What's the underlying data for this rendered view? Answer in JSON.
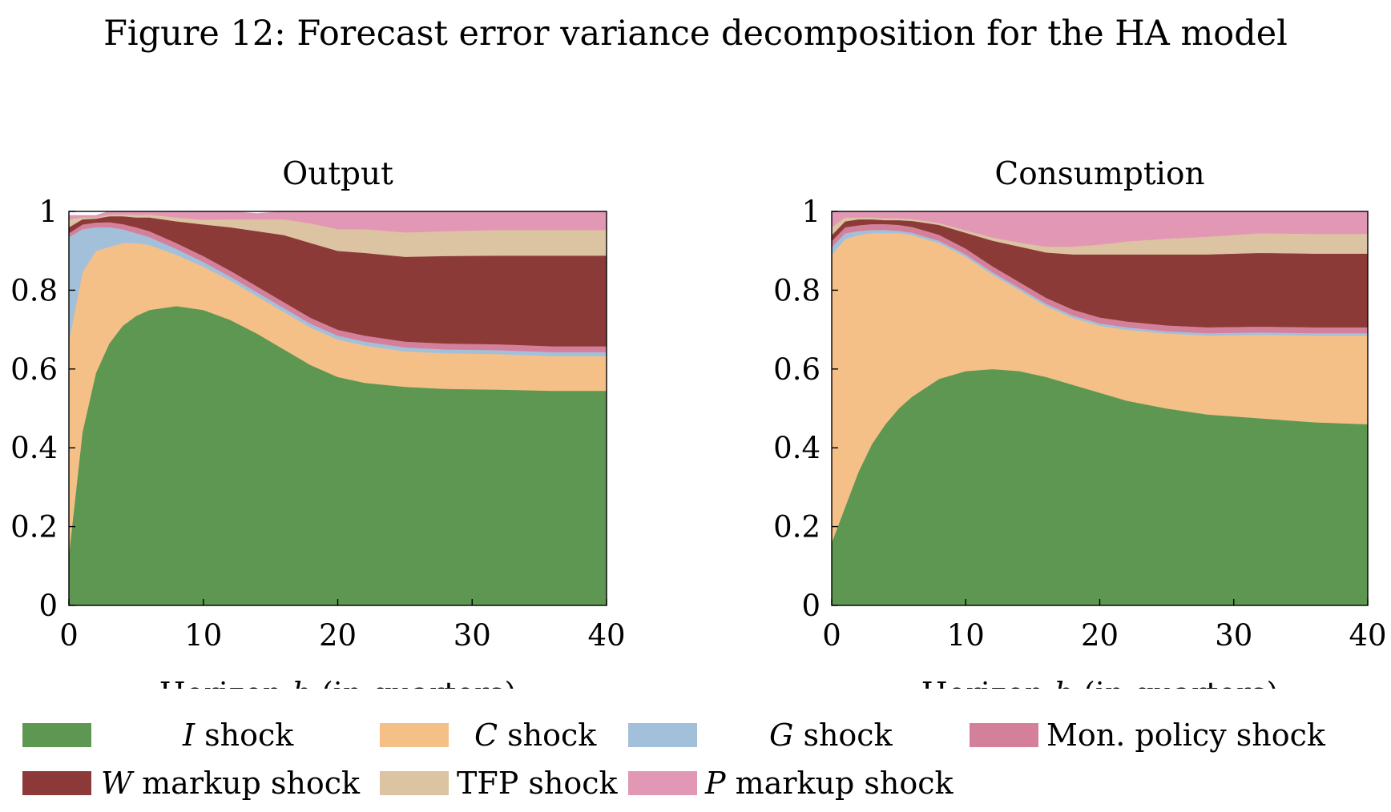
{
  "figure_title": "Figure 12: Forecast error variance decomposition for the HA model",
  "chart_data": [
    {
      "type": "area",
      "stacked": true,
      "title": "Output",
      "xlabel": "Horizon h (in quarters)",
      "ylabel": "",
      "xlim": [
        0,
        40
      ],
      "ylim": [
        0,
        1
      ],
      "xticks": [
        "0",
        "10",
        "20",
        "30",
        "40"
      ],
      "yticks": [
        "0",
        "0.2",
        "0.4",
        "0.6",
        "0.8",
        "1"
      ],
      "grid": false,
      "x": [
        0,
        1,
        2,
        3,
        4,
        5,
        6,
        8,
        10,
        12,
        14,
        16,
        18,
        20,
        22,
        25,
        28,
        32,
        36,
        40
      ],
      "series": [
        {
          "name": "I shock",
          "values": [
            0.13,
            0.44,
            0.59,
            0.665,
            0.71,
            0.735,
            0.75,
            0.76,
            0.75,
            0.725,
            0.69,
            0.65,
            0.61,
            0.58,
            0.565,
            0.555,
            0.55,
            0.548,
            0.545,
            0.545
          ]
        },
        {
          "name": "C shock",
          "values": [
            0.54,
            0.405,
            0.31,
            0.245,
            0.21,
            0.185,
            0.165,
            0.13,
            0.11,
            0.1,
            0.095,
            0.095,
            0.095,
            0.095,
            0.095,
            0.09,
            0.09,
            0.09,
            0.088,
            0.088
          ]
        },
        {
          "name": "G shock",
          "values": [
            0.265,
            0.11,
            0.06,
            0.05,
            0.035,
            0.025,
            0.02,
            0.015,
            0.012,
            0.01,
            0.01,
            0.01,
            0.01,
            0.01,
            0.01,
            0.01,
            0.01,
            0.01,
            0.01,
            0.01
          ]
        },
        {
          "name": "Mon. policy shock",
          "values": [
            0.01,
            0.012,
            0.012,
            0.013,
            0.013,
            0.015,
            0.015,
            0.015,
            0.015,
            0.015,
            0.015,
            0.015,
            0.015,
            0.015,
            0.015,
            0.015,
            0.015,
            0.015,
            0.015,
            0.015
          ]
        },
        {
          "name": "W markup shock",
          "values": [
            0.015,
            0.013,
            0.01,
            0.015,
            0.02,
            0.025,
            0.035,
            0.055,
            0.08,
            0.11,
            0.14,
            0.17,
            0.19,
            0.2,
            0.21,
            0.215,
            0.222,
            0.225,
            0.23,
            0.23
          ]
        },
        {
          "name": "TFP shock",
          "values": [
            0.02,
            0.005,
            0.003,
            0.004,
            0.005,
            0.006,
            0.007,
            0.01,
            0.012,
            0.02,
            0.03,
            0.04,
            0.05,
            0.055,
            0.06,
            0.062,
            0.063,
            0.065,
            0.065,
            0.065
          ]
        },
        {
          "name": "P markup shock",
          "values": [
            0.01,
            0.005,
            0.005,
            0.008,
            0.007,
            0.009,
            0.008,
            0.015,
            0.021,
            0.02,
            0.015,
            0.02,
            0.03,
            0.045,
            0.045,
            0.053,
            0.05,
            0.047,
            0.047,
            0.047
          ]
        }
      ]
    },
    {
      "type": "area",
      "stacked": true,
      "title": "Consumption",
      "xlabel": "Horizon h (in quarters)",
      "ylabel": "",
      "xlim": [
        0,
        40
      ],
      "ylim": [
        0,
        1
      ],
      "xticks": [
        "0",
        "10",
        "20",
        "30",
        "40"
      ],
      "yticks": [
        "0",
        "0.2",
        "0.4",
        "0.6",
        "0.8",
        "1"
      ],
      "grid": false,
      "x": [
        0,
        1,
        2,
        3,
        4,
        5,
        6,
        8,
        10,
        12,
        14,
        16,
        18,
        20,
        22,
        25,
        28,
        32,
        36,
        40
      ],
      "series": [
        {
          "name": "I shock",
          "values": [
            0.16,
            0.25,
            0.34,
            0.41,
            0.46,
            0.5,
            0.53,
            0.575,
            0.595,
            0.6,
            0.595,
            0.58,
            0.56,
            0.54,
            0.52,
            0.5,
            0.485,
            0.475,
            0.465,
            0.46
          ]
        },
        {
          "name": "C shock",
          "values": [
            0.73,
            0.68,
            0.6,
            0.535,
            0.485,
            0.445,
            0.41,
            0.345,
            0.29,
            0.24,
            0.205,
            0.18,
            0.17,
            0.17,
            0.18,
            0.19,
            0.2,
            0.212,
            0.22,
            0.225
          ]
        },
        {
          "name": "G shock",
          "values": [
            0.02,
            0.015,
            0.01,
            0.008,
            0.008,
            0.006,
            0.006,
            0.006,
            0.006,
            0.006,
            0.006,
            0.006,
            0.006,
            0.006,
            0.006,
            0.006,
            0.006,
            0.006,
            0.006,
            0.006
          ]
        },
        {
          "name": "Mon. policy shock",
          "values": [
            0.015,
            0.015,
            0.015,
            0.015,
            0.015,
            0.015,
            0.015,
            0.015,
            0.015,
            0.015,
            0.015,
            0.015,
            0.015,
            0.015,
            0.015,
            0.015,
            0.015,
            0.015,
            0.015,
            0.015
          ]
        },
        {
          "name": "W markup shock",
          "values": [
            0.015,
            0.015,
            0.015,
            0.012,
            0.01,
            0.012,
            0.015,
            0.025,
            0.04,
            0.065,
            0.09,
            0.115,
            0.14,
            0.16,
            0.17,
            0.18,
            0.185,
            0.187,
            0.187,
            0.187
          ]
        },
        {
          "name": "TFP shock",
          "values": [
            0.02,
            0.01,
            0.005,
            0.005,
            0.005,
            0.005,
            0.005,
            0.005,
            0.006,
            0.008,
            0.01,
            0.015,
            0.02,
            0.025,
            0.033,
            0.04,
            0.045,
            0.05,
            0.05,
            0.05
          ]
        },
        {
          "name": "P markup shock",
          "values": [
            0.04,
            0.015,
            0.015,
            0.015,
            0.017,
            0.017,
            0.019,
            0.029,
            0.048,
            0.066,
            0.079,
            0.089,
            0.089,
            0.084,
            0.076,
            0.069,
            0.064,
            0.055,
            0.057,
            0.057
          ]
        }
      ]
    }
  ],
  "colors": {
    "I shock": "#5e9751",
    "C shock": "#f5c088",
    "G shock": "#a3c0db",
    "Mon. policy shock": "#d4809a",
    "W markup shock": "#8b3a37",
    "TFP shock": "#dcc3a2",
    "P markup shock": "#e298b5"
  },
  "legend": {
    "items": [
      {
        "prefix": "I",
        "rest": " shock",
        "color": "#5e9751"
      },
      {
        "prefix": "",
        "rest": "C shock",
        "color": "#f5c088"
      },
      {
        "prefix": "G",
        "rest": " shock",
        "color": "#a3c0db"
      },
      {
        "prefix": "",
        "rest": "Mon. policy shock",
        "color": "#d4809a"
      },
      {
        "prefix": "W",
        "rest": " markup shock",
        "color": "#8b3a37"
      },
      {
        "prefix": "",
        "rest": "TFP shock",
        "color": "#dcc3a2"
      },
      {
        "prefix": "P",
        "rest": " markup shock",
        "color": "#e298b5"
      }
    ]
  }
}
